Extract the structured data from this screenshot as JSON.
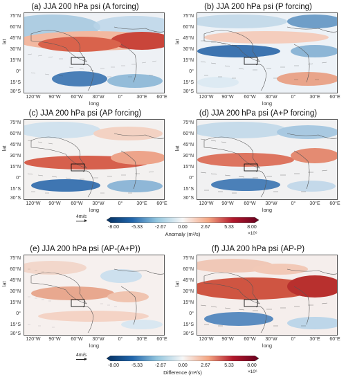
{
  "panels": [
    {
      "title": "(a) JJA 200 hPa psi (A forcing)"
    },
    {
      "title": "(b) JJA 200 hPa psi (P forcing)"
    },
    {
      "title": "(c) JJA 200 hPa psi (AP forcing)"
    },
    {
      "title": "(d) JJA 200 hPa psi (A+P forcing)"
    },
    {
      "title": "(e) JJA 200 hPa psi (AP-(A+P))"
    },
    {
      "title": "(f) JJA 200 hPa psi (AP-P)"
    }
  ],
  "axes": {
    "ylabel": "lat",
    "xlabel": "long",
    "lat_ticks": [
      "75°N",
      "60°N",
      "45°N",
      "30°N",
      "15°N",
      "0°",
      "15°S",
      "30°S"
    ],
    "lon_ticks": [
      "120°W",
      "90°W",
      "60°W",
      "30°W",
      "0°",
      "30°E",
      "60°E"
    ]
  },
  "colorbars": [
    {
      "ticks": [
        "-8.00",
        "-5.33",
        "-2.67",
        "0.00",
        "2.67",
        "5.33",
        "8.00"
      ],
      "label": "Anomaly (m²/s)",
      "exponent": "×10⁶",
      "ref_vector": "4m/s"
    },
    {
      "ticks": [
        "-8.00",
        "-5.33",
        "-2.67",
        "0.00",
        "2.67",
        "5.33",
        "8.00"
      ],
      "label": "Difference (m²/s)",
      "exponent": "×10⁶",
      "ref_vector": "4m/s"
    }
  ],
  "colors": {
    "positive": "#b2182b",
    "negative": "#2166ac",
    "neutral": "#f7f7f7",
    "box": "#111111"
  }
}
